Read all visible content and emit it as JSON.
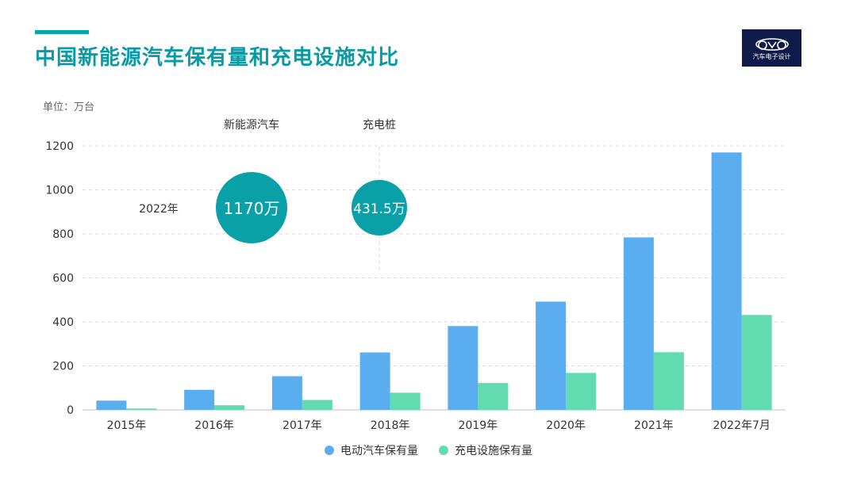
{
  "title": "中国新能源汽车保有量和充电设施对比",
  "logo_text": "汽车电子设计",
  "unit_label": "单位：万台",
  "colors": {
    "accent": "#0aa3ae",
    "series_ev": "#5aaef0",
    "series_charger": "#62dbb0",
    "bubble": "#0aa0a8"
  },
  "callout": {
    "col1_header": "新能源汽车",
    "col2_header": "充电桩",
    "row_label": "2022年",
    "value1": "1170万",
    "value2": "431.5万"
  },
  "chart_data": {
    "type": "bar",
    "categories": [
      "2015年",
      "2016年",
      "2017年",
      "2018年",
      "2019年",
      "2020年",
      "2021年",
      "2022年7月"
    ],
    "series": [
      {
        "name": "电动汽车保有量",
        "values": [
          42,
          91,
          153,
          261,
          381,
          492,
          784,
          1170
        ]
      },
      {
        "name": "充电设施保有量",
        "values": [
          6,
          21,
          45,
          78,
          122,
          168,
          262,
          431.5
        ]
      }
    ],
    "yticks": [
      0,
      200,
      400,
      600,
      800,
      1000,
      1200
    ],
    "ylim": [
      0,
      1200
    ],
    "grid": true,
    "legend": "bottom"
  }
}
